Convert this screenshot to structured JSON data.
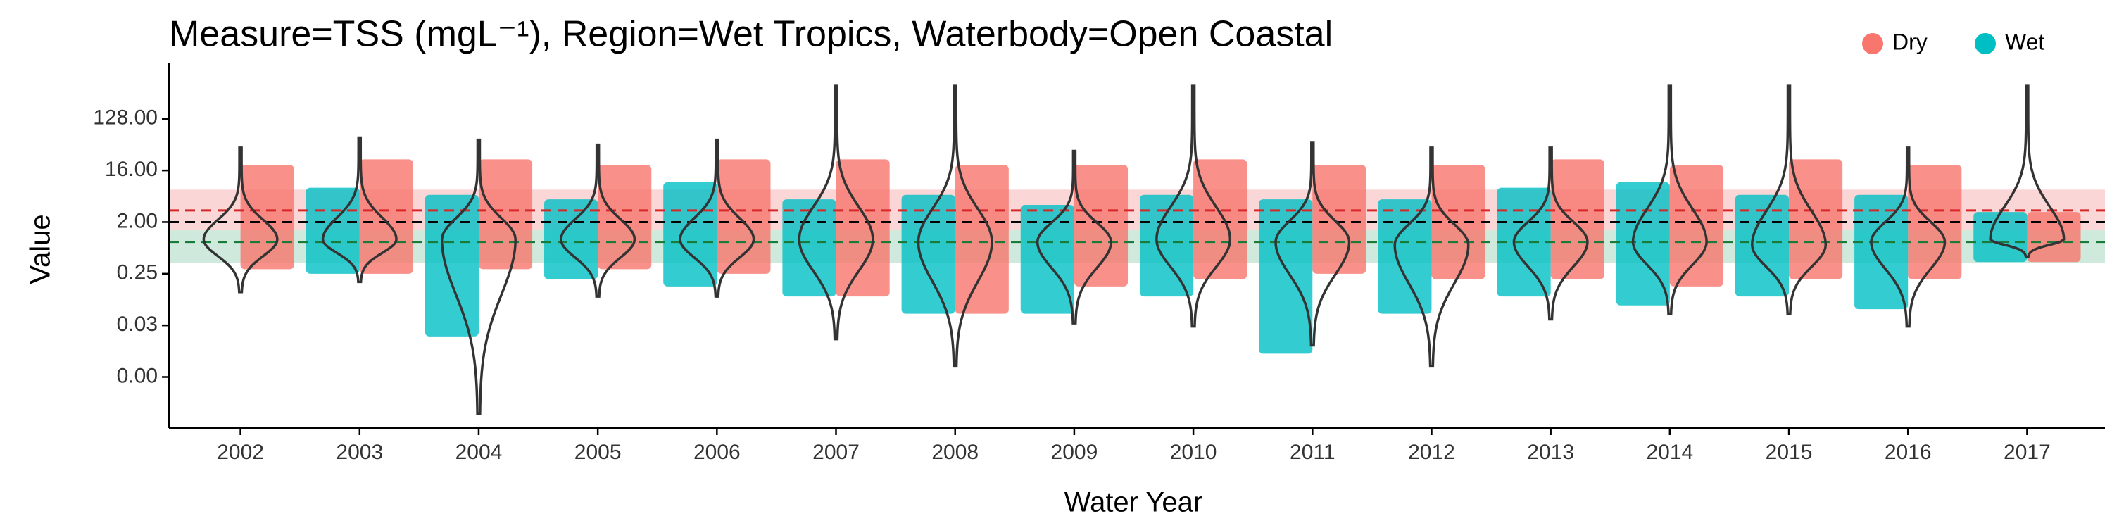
{
  "chart_data": {
    "type": "violin",
    "title": "Measure=TSS (mgL⁻¹), Region=Wet Tropics, Waterbody=Open Coastal",
    "x_label": "Water Year",
    "y_label": "Value",
    "log_scale": true,
    "legend_position": "top-right",
    "categories": [
      "2002",
      "2003",
      "2004",
      "2005",
      "2006",
      "2007",
      "2008",
      "2009",
      "2010",
      "2011",
      "2012",
      "2013",
      "2014",
      "2015",
      "2016",
      "2017"
    ],
    "ylim": [
      0.0005,
      900
    ],
    "yticks": [
      {
        "value": 0.00390625,
        "label": "0.00"
      },
      {
        "value": 0.03125,
        "label": "0.03"
      },
      {
        "value": 0.25,
        "label": "0.25"
      },
      {
        "value": 2,
        "label": "2.00"
      },
      {
        "value": 16,
        "label": "16.00"
      },
      {
        "value": 128,
        "label": "128.00"
      }
    ],
    "series": [
      {
        "name": "Dry",
        "color": "#f8766d",
        "side": "right",
        "low": [
          0.3,
          0.25,
          0.3,
          0.3,
          0.25,
          0.1,
          0.05,
          0.15,
          0.2,
          0.25,
          0.2,
          0.2,
          0.15,
          0.2,
          0.2,
          0.4
        ],
        "high": [
          20,
          25,
          25,
          20,
          25,
          25,
          20,
          20,
          25,
          20,
          20,
          25,
          20,
          25,
          20,
          3
        ]
      },
      {
        "name": "Wet",
        "color": "#00bfc4",
        "side": "left",
        "low": [
          null,
          0.25,
          0.02,
          0.2,
          0.15,
          0.1,
          0.05,
          0.05,
          0.1,
          0.01,
          0.05,
          0.1,
          0.07,
          0.1,
          0.06,
          0.4
        ],
        "high": [
          null,
          8,
          6,
          5,
          10,
          5,
          6,
          4,
          6,
          5,
          5,
          8,
          10,
          6,
          6,
          3
        ]
      }
    ],
    "violins": [
      {
        "min": 0.12,
        "mode": 1.0,
        "max": 40
      },
      {
        "min": 0.18,
        "mode": 1.0,
        "max": 60
      },
      {
        "min": 0.0009,
        "mode": 1.0,
        "max": 55
      },
      {
        "min": 0.1,
        "mode": 1.0,
        "max": 45
      },
      {
        "min": 0.1,
        "mode": 1.0,
        "max": 55
      },
      {
        "min": 0.018,
        "mode": 1.0,
        "max": 480
      },
      {
        "min": 0.006,
        "mode": 0.9,
        "max": 480
      },
      {
        "min": 0.034,
        "mode": 0.9,
        "max": 35
      },
      {
        "min": 0.03,
        "mode": 1.0,
        "max": 480
      },
      {
        "min": 0.014,
        "mode": 0.9,
        "max": 50
      },
      {
        "min": 0.006,
        "mode": 0.8,
        "max": 40
      },
      {
        "min": 0.04,
        "mode": 0.9,
        "max": 40
      },
      {
        "min": 0.05,
        "mode": 0.9,
        "max": 480
      },
      {
        "min": 0.05,
        "mode": 0.8,
        "max": 480
      },
      {
        "min": 0.03,
        "mode": 0.9,
        "max": 40
      },
      {
        "min": 0.5,
        "mode": 1.0,
        "max": 480
      }
    ],
    "bands": [
      {
        "low": 1.44,
        "high": 7.4,
        "color": "#f8b4b4"
      },
      {
        "low": 0.39,
        "high": 1.44,
        "color": "#a8d8c0"
      }
    ],
    "ref_lines": [
      {
        "value": 3.2,
        "color": "#d62728"
      },
      {
        "value": 2,
        "color": "#000000"
      },
      {
        "value": 0.9,
        "color": "#1a7a3a"
      }
    ]
  }
}
